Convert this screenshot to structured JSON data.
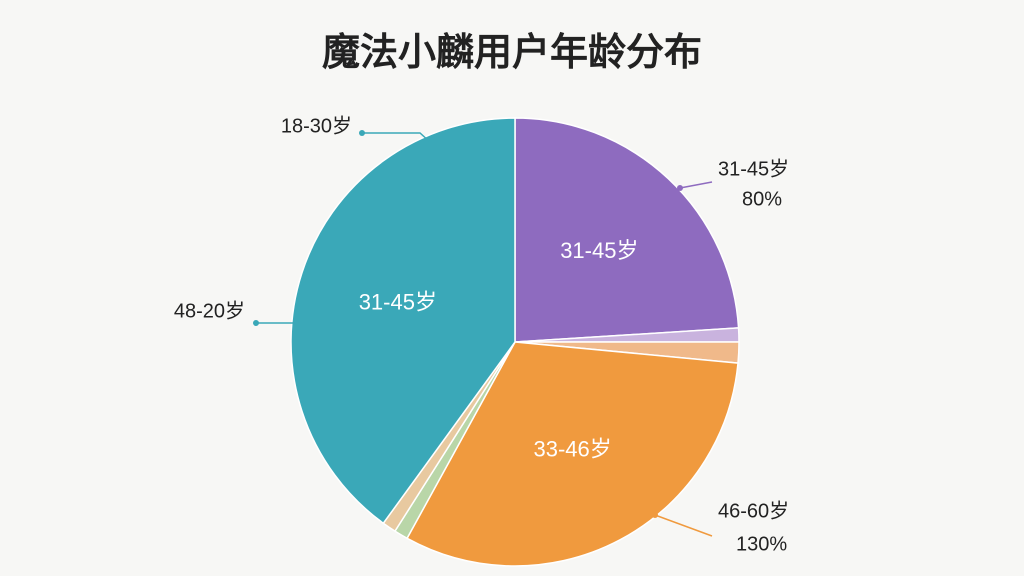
{
  "chart_data": {
    "type": "pie",
    "title": "魔法小麟用户年龄分布",
    "categories": [
      "31-45岁",
      null,
      null,
      "33-46岁",
      null,
      null,
      "31-45岁"
    ],
    "values": [
      24,
      1,
      1.5,
      31.5,
      1,
      1,
      40
    ],
    "colors": [
      "#8e6bbf",
      "#c9b3de",
      "#f0b98a",
      "#f09a3e",
      "#b9d6a8",
      "#e8c9a0",
      "#3aa8b8"
    ],
    "annotations": [
      "18-30岁",
      "31-45岁",
      "80%",
      "48-20岁",
      "46-60岁",
      "130%"
    ]
  }
}
